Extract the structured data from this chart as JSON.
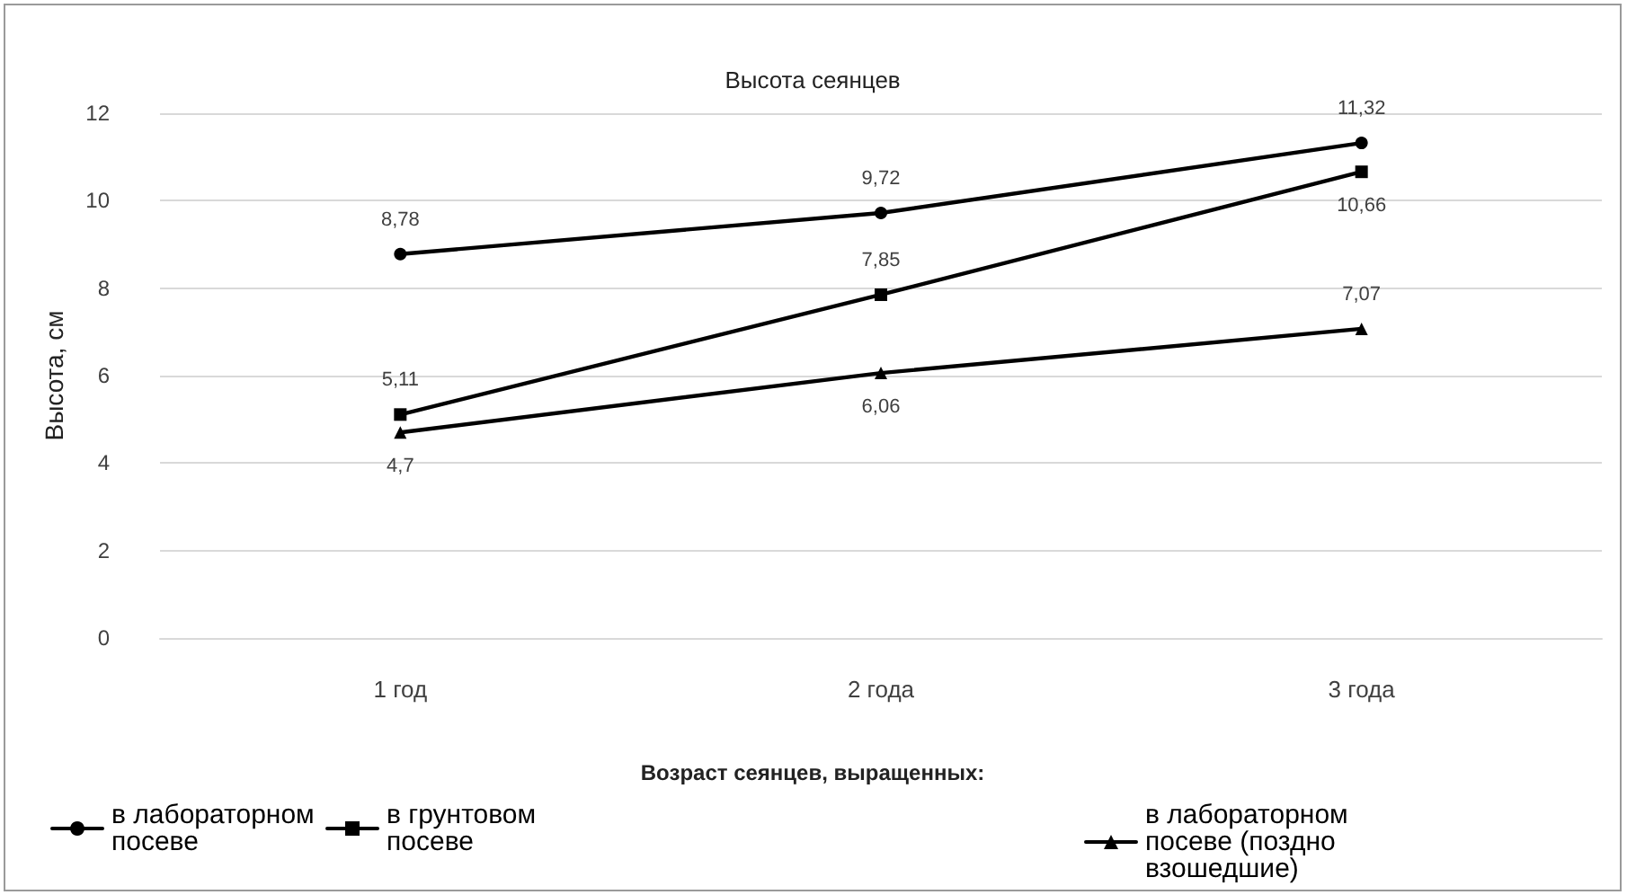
{
  "chart_data": {
    "type": "line",
    "title": "Высота сеянцев",
    "ylabel": "Высота, см",
    "legend_title": "Возраст сеянцев, выращенных:",
    "categories": [
      "1 год",
      "2 года",
      "3 года"
    ],
    "series": [
      {
        "name": "в лабораторном посеве",
        "color": "#000000",
        "marker": "circle",
        "values": [
          8.78,
          9.72,
          11.32
        ],
        "value_labels": [
          "8,78",
          "9,72",
          "11,32"
        ]
      },
      {
        "name": "в грунтовом посеве",
        "color": "#000000",
        "marker": "square",
        "values": [
          5.11,
          7.85,
          10.66
        ],
        "value_labels": [
          "5,11",
          "7,85",
          "10,66"
        ]
      },
      {
        "name": "в лабораторном посеве (поздно взошедшие)",
        "color": "#000000",
        "marker": "triangle",
        "values": [
          4.7,
          6.06,
          7.07
        ],
        "value_labels": [
          "4,7",
          "6,06",
          "7,07"
        ]
      }
    ],
    "ylim": [
      0,
      12
    ],
    "yticks": [
      0,
      2,
      4,
      6,
      8,
      10,
      12
    ],
    "grid": "y",
    "legend": "bottom",
    "line_style": "solid"
  }
}
